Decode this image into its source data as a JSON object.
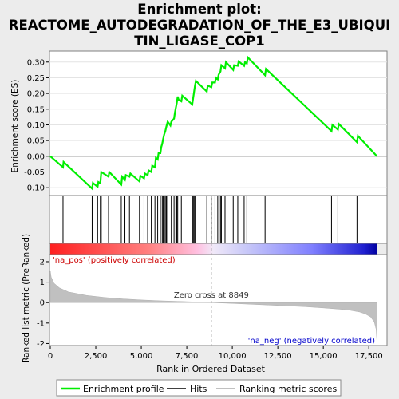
{
  "title_lines": [
    "Enrichment plot:",
    "REACTOME_AUTODEGRADATION_OF_THE_E3_UBIQUI",
    "TIN_LIGASE_COP1"
  ],
  "chart_data": {
    "type": "line",
    "es_panel": {
      "ylabel": "Enrichment score (ES)",
      "ylim": [
        -0.125,
        0.335
      ],
      "yticks": [
        -0.1,
        -0.05,
        0.0,
        0.05,
        0.1,
        0.15,
        0.2,
        0.25,
        0.3
      ],
      "ytick_labels": [
        "-0.10",
        "-0.05",
        "0.00",
        "0.05",
        "0.10",
        "0.15",
        "0.20",
        "0.25",
        "0.30"
      ],
      "series": [
        {
          "name": "Enrichment profile",
          "color": "#00ee00",
          "x": [
            0,
            700,
            730,
            2300,
            2340,
            2600,
            2640,
            2750,
            2800,
            3200,
            3240,
            3900,
            3950,
            4100,
            4150,
            4350,
            4400,
            4900,
            4950,
            5150,
            5200,
            5350,
            5400,
            5550,
            5600,
            5750,
            5800,
            5900,
            5950,
            6050,
            6100,
            6150,
            6200,
            6260,
            6320,
            6380,
            6450,
            6600,
            6650,
            6800,
            6850,
            6900,
            6950,
            7000,
            7050,
            7200,
            7250,
            7800,
            7850,
            7900,
            7950,
            8000,
            8600,
            8650,
            8850,
            8900,
            9050,
            9100,
            9200,
            9250,
            9350,
            9400,
            9600,
            9650,
            10050,
            10100,
            10300,
            10350,
            10650,
            10700,
            10800,
            10850,
            11800,
            11850,
            15450,
            15500,
            15800,
            15850,
            16850,
            16900,
            17950
          ],
          "y": [
            0.0,
            -0.035,
            -0.018,
            -0.103,
            -0.085,
            -0.097,
            -0.082,
            -0.086,
            -0.05,
            -0.065,
            -0.05,
            -0.09,
            -0.065,
            -0.075,
            -0.06,
            -0.065,
            -0.055,
            -0.08,
            -0.062,
            -0.07,
            -0.055,
            -0.06,
            -0.045,
            -0.05,
            -0.03,
            -0.035,
            -0.005,
            -0.01,
            0.01,
            0.01,
            0.03,
            0.04,
            0.055,
            0.07,
            0.08,
            0.095,
            0.11,
            0.098,
            0.11,
            0.12,
            0.14,
            0.155,
            0.17,
            0.19,
            0.18,
            0.175,
            0.193,
            0.165,
            0.185,
            0.205,
            0.225,
            0.24,
            0.206,
            0.225,
            0.22,
            0.235,
            0.235,
            0.25,
            0.245,
            0.26,
            0.27,
            0.29,
            0.28,
            0.3,
            0.275,
            0.29,
            0.288,
            0.302,
            0.288,
            0.3,
            0.295,
            0.315,
            0.258,
            0.278,
            0.08,
            0.1,
            0.085,
            0.103,
            0.045,
            0.065,
            0.0
          ]
        }
      ]
    },
    "hits": [
      700,
      2300,
      2600,
      2750,
      2800,
      3200,
      3900,
      4100,
      4350,
      4900,
      5150,
      5350,
      5550,
      5750,
      5900,
      6050,
      6150,
      6200,
      6260,
      6320,
      6380,
      6450,
      6650,
      6800,
      6900,
      6950,
      7000,
      7200,
      7800,
      7850,
      7900,
      7950,
      8600,
      8850,
      9050,
      9200,
      9350,
      9400,
      9600,
      10050,
      10300,
      10650,
      10800,
      11800,
      15450,
      15800,
      16850
    ],
    "metric_panel": {
      "ylabel": "Ranked list metric (PreRanked)",
      "xlabel": "Rank in Ordered Dataset",
      "xlim": [
        0,
        18500
      ],
      "xticks": [
        0,
        2500,
        5000,
        7500,
        10000,
        12500,
        15000,
        17500
      ],
      "xtick_labels": [
        "0",
        "2,500",
        "5,000",
        "7,500",
        "10,000",
        "12,500",
        "15,000",
        "17,500"
      ],
      "ylim": [
        -2.1,
        2.35
      ],
      "yticks": [
        -2,
        -1,
        0,
        1,
        2
      ],
      "ytick_labels": [
        "-2",
        "-1",
        "0",
        "1",
        "2"
      ],
      "n_genes": 17950,
      "zero_cross": 8849,
      "zero_cross_label": "Zero cross at 8849",
      "pos_label": "'na_pos' (positively correlated)",
      "neg_label": "'na_neg' (negatively correlated)",
      "pos_color": "#cc0000",
      "neg_color": "#0000cc",
      "profile_x": [
        0,
        50,
        200,
        500,
        1000,
        2000,
        3000,
        4000,
        5000,
        6000,
        7000,
        8000,
        8849,
        10000,
        11000,
        12000,
        13000,
        14000,
        15000,
        16000,
        16500,
        17000,
        17300,
        17600,
        17800,
        17900,
        17950
      ],
      "profile_y": [
        1.55,
        1.25,
        0.95,
        0.72,
        0.52,
        0.35,
        0.25,
        0.18,
        0.13,
        0.09,
        0.06,
        0.03,
        0.0,
        -0.04,
        -0.08,
        -0.12,
        -0.16,
        -0.2,
        -0.26,
        -0.33,
        -0.38,
        -0.46,
        -0.55,
        -0.7,
        -0.95,
        -1.3,
        -1.95
      ]
    },
    "legend": [
      {
        "label": "Enrichment profile",
        "color": "#00ee00"
      },
      {
        "label": "Hits",
        "color": "#000000"
      },
      {
        "label": "Ranking metric scores",
        "color": "#c0c0c0"
      }
    ]
  }
}
